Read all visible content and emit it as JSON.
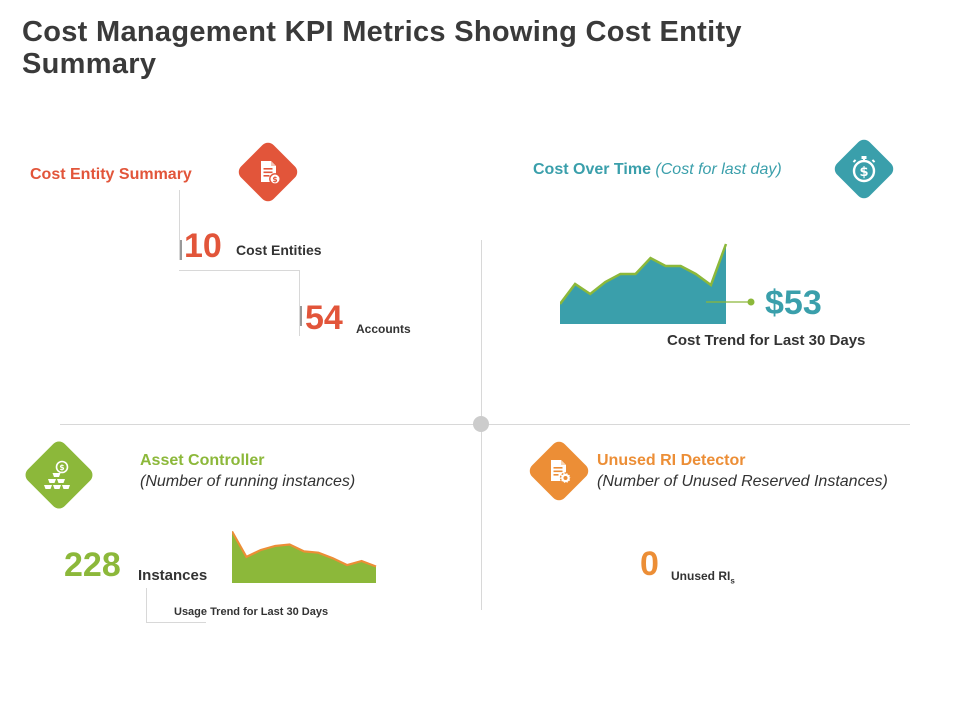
{
  "title": "Cost Management KPI Metrics Showing Cost Entity Summary",
  "colors": {
    "red": "#e2553a",
    "teal": "#3a9fab",
    "green": "#8cb83a",
    "orange": "#ec8e36",
    "grid": "#d8d8d8",
    "center_dot": "#cccccc"
  },
  "cost_entity": {
    "title": "Cost Entity Summary",
    "icon": "document-dollar-icon",
    "entities_value": "10",
    "entities_label": "Cost Entities",
    "accounts_value": "54",
    "accounts_label": "Accounts"
  },
  "cost_over_time": {
    "title": "Cost Over Time",
    "subtitle": "(Cost for last day)",
    "icon": "stopwatch-dollar-icon",
    "value": "$53",
    "trend_label": "Cost Trend for Last 30 Days",
    "trend": [
      2,
      4,
      3,
      4.2,
      5,
      5,
      6.6,
      5.8,
      5.8,
      5,
      3.9,
      8
    ]
  },
  "asset_controller": {
    "title": "Asset Controller",
    "subtitle": "(Number of running instances)",
    "icon": "gold-bars-icon",
    "value": "228",
    "label": "Instances",
    "trend_label": "Usage Trend for Last 30 Days",
    "trend": [
      7.5,
      3.8,
      4.8,
      5.4,
      5.6,
      4.6,
      4.4,
      3.6,
      2.6,
      3.2,
      2.4
    ]
  },
  "unused_ri": {
    "title": "Unused RI Detector",
    "subtitle": "(Number of Unused Reserved Instances)",
    "icon": "document-gear-icon",
    "value": "0",
    "label_main": "Unused RI",
    "label_sub": "s"
  }
}
